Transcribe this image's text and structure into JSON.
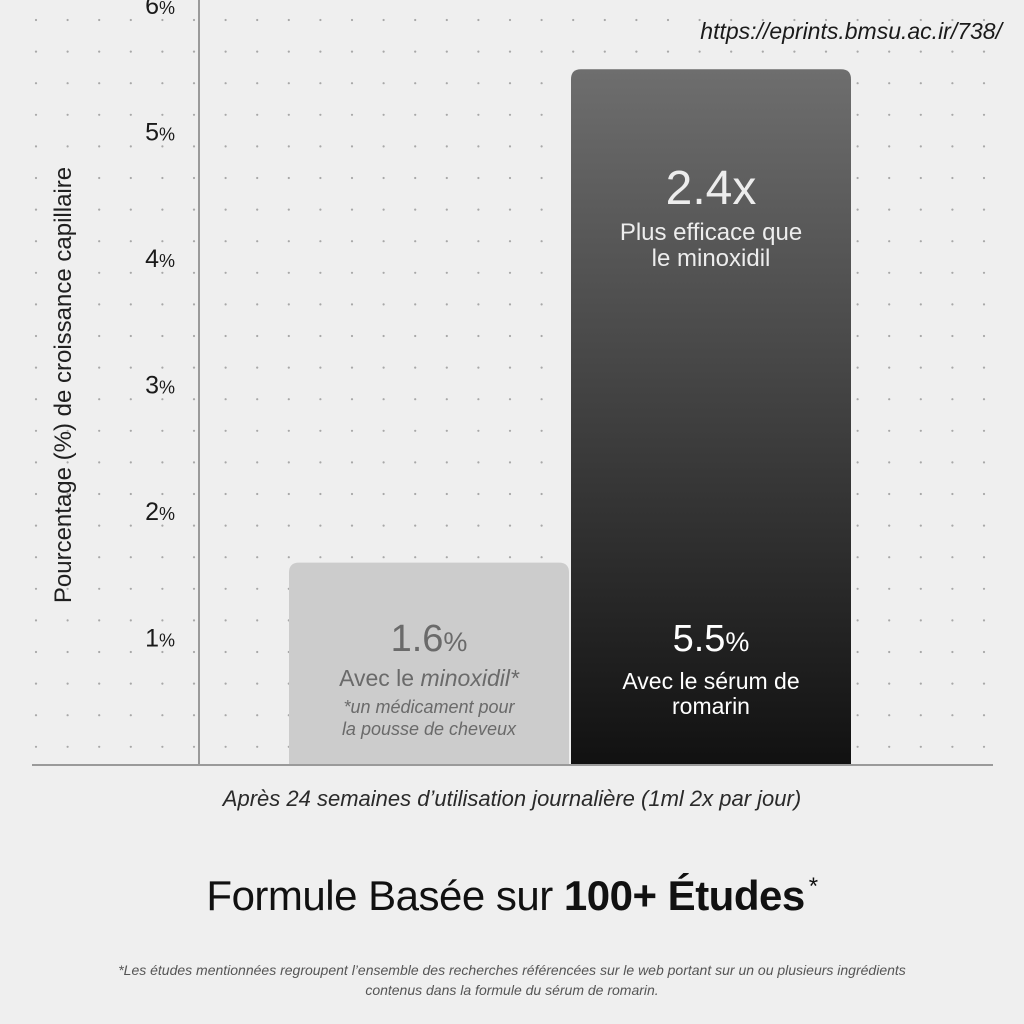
{
  "source_url": "https://eprints.bmsu.ac.ir/738/",
  "x_caption": "Après 24 semaines d’utilisation journalière (1ml 2x par jour)",
  "headline": {
    "normal": "Formule Basée sur ",
    "bold": "100+ Études",
    "mark": "*"
  },
  "footnote": "*Les études mentionnées regroupent l’ensemble des recherches référencées sur le web portant sur un ou plusieurs ingrédients contenus dans la formule du sérum de romarin.",
  "colors": {
    "background": "#efefef",
    "bar_minoxidil": "#cccccc",
    "bar_rosemary_top": "#6e6e6e",
    "bar_rosemary_bottom": "#111111",
    "axis": "#9a9a9a"
  },
  "chart_data": {
    "type": "bar",
    "ylabel": "Pourcentage (%) de croissance capillaire",
    "xlabel": "Après 24 semaines d’utilisation journalière (1ml 2x par jour)",
    "ylim": [
      0,
      6.3
    ],
    "yticks": [
      {
        "value": 1,
        "label": "1%"
      },
      {
        "value": 2,
        "label": "2%"
      },
      {
        "value": 3,
        "label": "3%"
      },
      {
        "value": 4,
        "label": "4%"
      },
      {
        "value": 5,
        "label": "5%"
      },
      {
        "value": 6,
        "label": "6%"
      }
    ],
    "grid": "dotted",
    "categories": [
      "minoxidil",
      "sérum de romarin"
    ],
    "values": [
      1.6,
      5.5
    ],
    "bars": [
      {
        "value": 1.6,
        "value_label": "1.6%",
        "label_prefix": "Avec le ",
        "label_emph": "minoxidil*",
        "note_lines": [
          "*un médicament pour",
          "la pousse de cheveux"
        ]
      },
      {
        "value": 5.5,
        "value_label": "5.5%",
        "label_lines": [
          "Avec le sérum de",
          "romarin"
        ],
        "multiplier": "2.4x",
        "multiplier_lines": [
          "Plus efficace que",
          "le minoxidil"
        ]
      }
    ]
  }
}
